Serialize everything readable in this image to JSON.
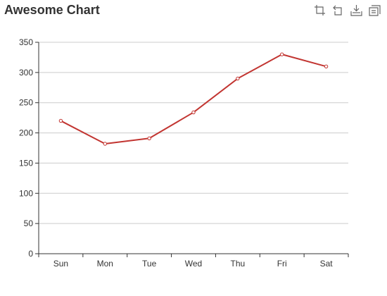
{
  "chart_data": {
    "type": "line",
    "title": "Awesome Chart",
    "categories": [
      "Sun",
      "Mon",
      "Tue",
      "Wed",
      "Thu",
      "Fri",
      "Sat"
    ],
    "series": [
      {
        "values": [
          220,
          182,
          191,
          234,
          290,
          330,
          310
        ],
        "color": "#c23531"
      }
    ],
    "ylim": [
      0,
      350
    ],
    "yticks": [
      0,
      50,
      100,
      150,
      200,
      250,
      300,
      350
    ],
    "grid": true,
    "xlabel": "",
    "ylabel": ""
  },
  "toolbox": {
    "icons": [
      "zoom-icon",
      "zoom-reset-icon",
      "save-image-icon",
      "data-view-icon"
    ],
    "color": "#666666"
  }
}
